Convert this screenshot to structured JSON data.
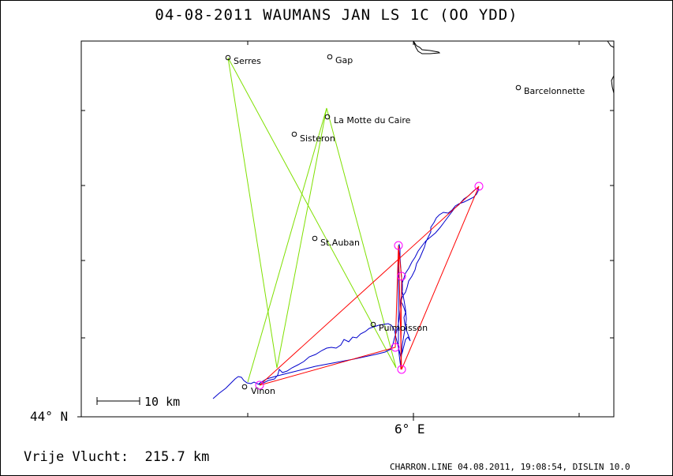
{
  "title": "04-08-2011   WAUMANS JAN   LS 1C (OO YDD)",
  "axes": {
    "lat_label": "44° N",
    "lon_label": "6° E"
  },
  "scale_bar": {
    "label": "10 km"
  },
  "towns": [
    {
      "name": "Serres"
    },
    {
      "name": "Gap"
    },
    {
      "name": "Barcelonnette"
    },
    {
      "name": "La Motte du Caire"
    },
    {
      "name": "Sisteron"
    },
    {
      "name": "St.Auban"
    },
    {
      "name": "Puimoisson"
    },
    {
      "name": "Vinon"
    }
  ],
  "distance_label": "Vrije Vlucht:  215.7 km",
  "footer": "CHARRON.LINE 04.08.2011, 19:08:54, DISLIN 10.0",
  "colors": {
    "task_line": "#7fe000",
    "flight_track": "#0000cc",
    "optimized_route": "#ff0000",
    "turnpoint_marker": "#ff00ff"
  }
}
